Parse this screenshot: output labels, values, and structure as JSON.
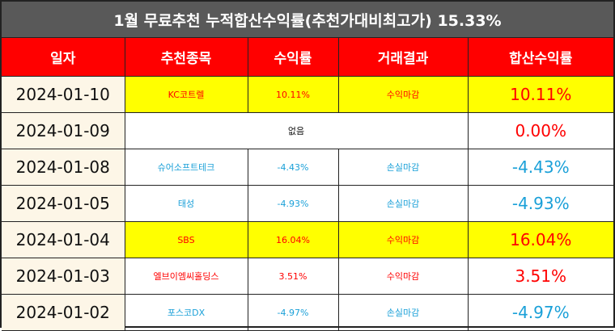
{
  "title": "1월 무료추천 누적합산수익률(추천가대비최고가) 15.33%",
  "headers": [
    "일자",
    "추천종목",
    "수익률",
    "거래결과",
    "합산수익률"
  ],
  "rows": [
    {
      "date": "2024-01-10",
      "stock": "KC코트렐",
      "return": "10.11%",
      "result": "수익마감",
      "total": "10.11%"
    },
    {
      "date": "2024-01-09",
      "none_text": "없음",
      "total": "0.00%"
    },
    {
      "date": "2024-01-08",
      "stock": "슈어소프트테크",
      "return": "-4.43%",
      "result": "손실마감",
      "total": "-4.43%"
    },
    {
      "date": "2024-01-05",
      "stock": "태성",
      "return": "-4.93%",
      "result": "손실마감",
      "total": "-4.93%"
    },
    {
      "date": "2024-01-04",
      "stock": "SBS",
      "return": "16.04%",
      "result": "수익마감",
      "total": "16.04%"
    },
    {
      "date": "2024-01-03",
      "stock": "엘브이엠씨홀딩스",
      "return": "3.51%",
      "result": "수익마감",
      "total": "3.51%"
    },
    {
      "date": "2024-01-02",
      "stock": "포스코DX",
      "return": "-4.97%",
      "result": "손실마감",
      "total": "-4.97%"
    }
  ],
  "colors": {
    "header_bg": "#ff0000",
    "title_bg": "#595959",
    "highlight": "#ffff00",
    "positive": "#ff0000",
    "negative": "#1aa0d8",
    "date_bg": "#fdf6e7"
  }
}
